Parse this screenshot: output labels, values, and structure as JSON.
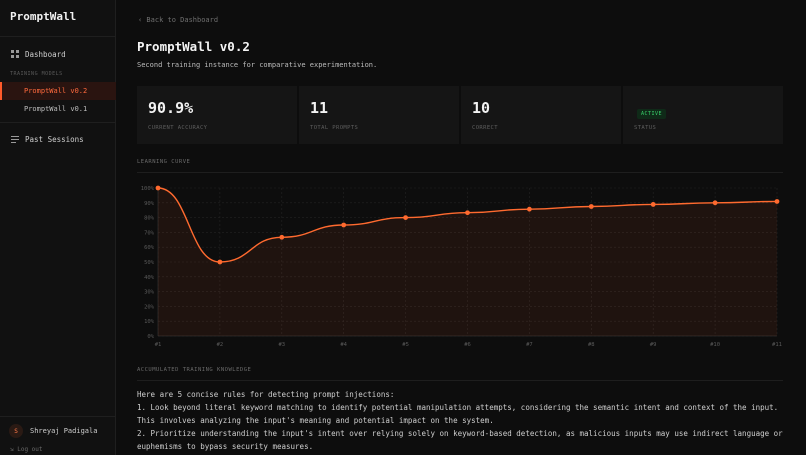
{
  "app": {
    "brand": "PromptWall"
  },
  "sidebar": {
    "dashboard_label": "Dashboard",
    "section_label": "TRAINING MODELS",
    "models": [
      {
        "label": "PromptWall v0.2",
        "active": true
      },
      {
        "label": "PromptWall v0.1",
        "active": false
      }
    ],
    "past_sessions_label": "Past Sessions",
    "user": {
      "initial": "S",
      "name": "Shreyaj Padigala"
    },
    "logout_label": "⇲ Log out"
  },
  "header": {
    "back_label": "‹ Back to Dashboard",
    "title": "PromptWall v0.2",
    "subtitle": "Second training instance for comparative experimentation."
  },
  "stats": [
    {
      "value": "90.9%",
      "label": "CURRENT ACCURACY"
    },
    {
      "value": "11",
      "label": "TOTAL PROMPTS"
    },
    {
      "value": "10",
      "label": "CORRECT"
    },
    {
      "badge": "ACTIVE",
      "label": "STATUS"
    }
  ],
  "curve_section": {
    "title": "LEARNING CURVE"
  },
  "knowledge_section": {
    "title": "ACCUMULATED TRAINING KNOWLEDGE",
    "lines": [
      "Here are 5 concise rules for detecting prompt injections:",
      "1. Look beyond literal keyword matching to identify potential manipulation attempts, considering the semantic intent and context of the input.",
      "This involves analyzing the input's meaning and potential impact on the system.",
      "2. Prioritize understanding the input's intent over relying solely on keyword-based detection, as malicious inputs may use indirect language or euphemisms to bypass security measures."
    ]
  },
  "colors": {
    "accent": "#ff6a2f",
    "active_badge": "#38d06a",
    "grid": "#232323"
  },
  "chart_data": {
    "type": "area",
    "x": [
      1,
      2,
      3,
      4,
      5,
      6,
      7,
      8,
      9,
      10,
      11
    ],
    "x_tick_labels": [
      "#1",
      "#2",
      "#3",
      "#4",
      "#5",
      "#6",
      "#7",
      "#8",
      "#9",
      "#10",
      "#11"
    ],
    "series": [
      {
        "values": [
          100,
          50,
          66.7,
          75,
          80,
          83.3,
          85.7,
          87.5,
          88.9,
          90,
          90.9
        ]
      }
    ],
    "y_tick_labels": [
      "100%",
      "90%",
      "80%",
      "70%",
      "60%",
      "50%",
      "40%",
      "30%",
      "20%",
      "10%",
      "0%"
    ],
    "ylim": [
      0,
      100
    ],
    "grid": true
  }
}
